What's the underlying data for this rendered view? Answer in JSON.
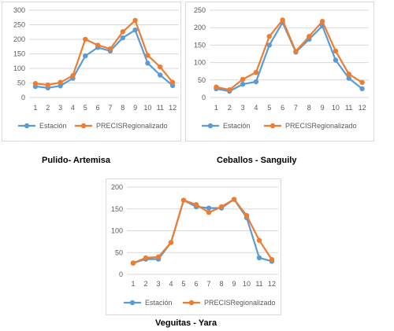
{
  "colors": {
    "estacion": "#5b9bd5",
    "precis": "#ed7d31",
    "grid": "#d9d9d9",
    "axis_text": "#595959"
  },
  "chart_data": [
    {
      "type": "line",
      "title": "",
      "caption": "Pulido- Artemisa",
      "categories": [
        "1",
        "2",
        "3",
        "4",
        "5",
        "6",
        "7",
        "8",
        "9",
        "10",
        "11",
        "12"
      ],
      "ylim": [
        0,
        300
      ],
      "yticks": [
        "0",
        "50",
        "100",
        "150",
        "200",
        "250",
        "300"
      ],
      "grid": true,
      "legend": "bottom",
      "series": [
        {
          "name": "Estación",
          "values": [
            38,
            33,
            40,
            66,
            143,
            172,
            160,
            205,
            232,
            118,
            77,
            41
          ]
        },
        {
          "name": "PRECISRegionalizado",
          "values": [
            48,
            43,
            52,
            75,
            200,
            180,
            167,
            226,
            265,
            145,
            105,
            52
          ]
        }
      ]
    },
    {
      "type": "line",
      "title": "",
      "caption": "Ceballos - Sanguily",
      "categories": [
        "1",
        "2",
        "3",
        "4",
        "5",
        "6",
        "7",
        "8",
        "9",
        "10",
        "11",
        "12"
      ],
      "ylim": [
        0,
        250
      ],
      "yticks": [
        "0",
        "50",
        "100",
        "150",
        "200",
        "250"
      ],
      "grid": true,
      "legend": "bottom",
      "series": [
        {
          "name": "Estación",
          "values": [
            25,
            18,
            38,
            45,
            150,
            215,
            130,
            167,
            205,
            107,
            55,
            25
          ]
        },
        {
          "name": "PRECISRegionalizado",
          "values": [
            30,
            22,
            52,
            72,
            175,
            222,
            132,
            175,
            218,
            133,
            67,
            43
          ]
        }
      ]
    },
    {
      "type": "line",
      "title": "",
      "caption": "Veguitas - Yara",
      "categories": [
        "1",
        "2",
        "3",
        "4",
        "5",
        "6",
        "7",
        "8",
        "9",
        "10",
        "11",
        "12"
      ],
      "ylim": [
        0,
        200
      ],
      "yticks": [
        "0",
        "50",
        "100",
        "150",
        "200"
      ],
      "grid": true,
      "legend": "bottom",
      "series": [
        {
          "name": "Estación",
          "values": [
            26,
            35,
            35,
            73,
            170,
            155,
            152,
            152,
            172,
            130,
            38,
            30
          ]
        },
        {
          "name": "PRECISRegionalizado",
          "values": [
            26,
            38,
            40,
            73,
            170,
            160,
            142,
            155,
            172,
            135,
            78,
            34
          ]
        }
      ]
    }
  ]
}
